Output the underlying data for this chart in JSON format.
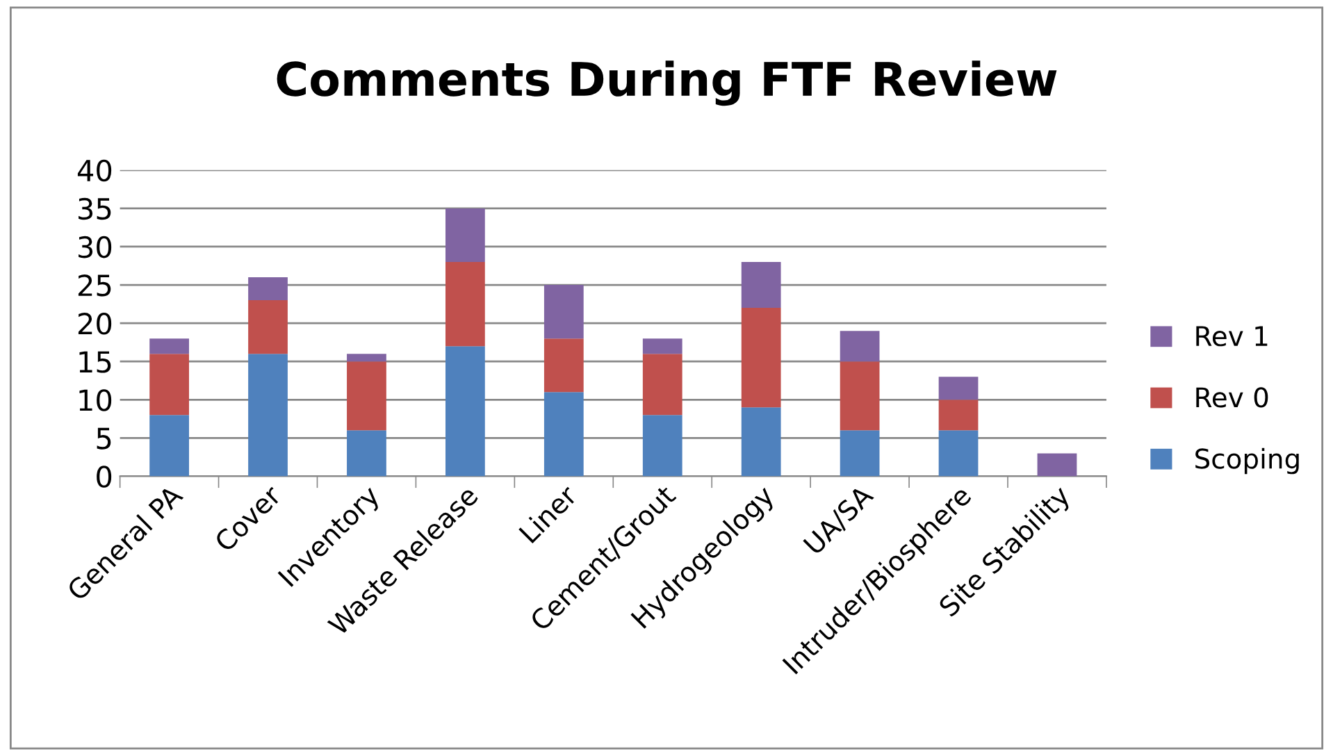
{
  "chart_data": {
    "type": "bar",
    "title": "Comments During FTF Review",
    "categories": [
      "General PA",
      "Cover",
      "Inventory",
      "Waste Release",
      "Liner",
      "Cement/Grout",
      "Hydrogeology",
      "UA/SA",
      "Intruder/Biosphere",
      "Site Stability"
    ],
    "series": [
      {
        "name": "Scoping",
        "color": "#4f81bd",
        "values": [
          8,
          16,
          6,
          17,
          11,
          8,
          9,
          6,
          6,
          0
        ]
      },
      {
        "name": "Rev 0",
        "color": "#c0504d",
        "values": [
          8,
          7,
          9,
          11,
          7,
          8,
          13,
          9,
          4,
          0
        ]
      },
      {
        "name": "Rev 1",
        "color": "#8064a2",
        "values": [
          2,
          3,
          1,
          7,
          7,
          2,
          6,
          4,
          3,
          3
        ]
      }
    ],
    "stacked": true,
    "ylim": [
      0,
      40
    ],
    "yticks": [
      0,
      5,
      10,
      15,
      20,
      25,
      30,
      35,
      40
    ],
    "grid": "y",
    "legend": "right"
  }
}
